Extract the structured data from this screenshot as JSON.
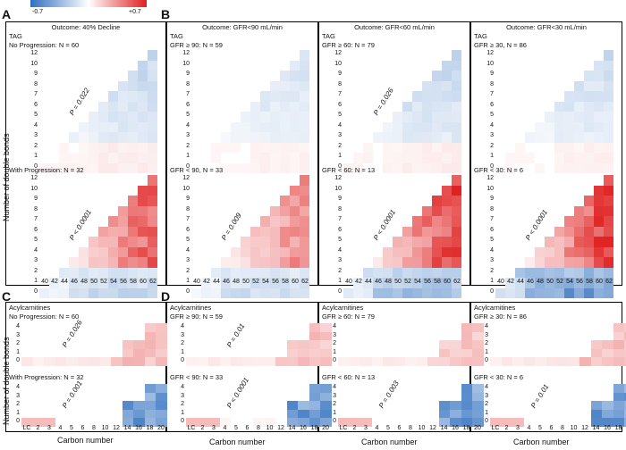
{
  "colorbar": {
    "min_label": "-0.7",
    "max_label": "+0.7",
    "low": "#2f6fbf",
    "mid": "#ffffff",
    "high": "#e02020"
  },
  "panel_letters": {
    "a": "A",
    "b": "B",
    "c": "C",
    "d": "D"
  },
  "titles": {
    "a": "Outcome: 40% Decline",
    "b1": "Outcome: GFR<90 mL/min",
    "b2": "Outcome: GFR<60 mL/min",
    "b3": "Outcome: GFR<30 mL/min"
  },
  "tag_label": "TAG",
  "acyl_label": "Acylcarnitines",
  "groups": {
    "a_top": "No Progression: N = 60",
    "a_bot": "With Progression: N = 32",
    "b1_top": "GFR ≥ 90: N = 59",
    "b1_bot": "GFR < 90, N = 33",
    "b2_top": "GFR ≥ 60: N = 79",
    "b2_bot": "GFR < 60: N = 13",
    "b3_top": "GFR ≥ 30, N = 86",
    "b3_bot": "GFR < 30: N = 6",
    "c_top": "No Progression: N = 60",
    "c_bot": "With Progression: N = 32",
    "d1_top": "GFR ≥ 90: N = 59",
    "d1_bot": "GFR < 90: N = 33",
    "d2_top": "GFR ≥ 60: N = 79",
    "d2_bot": "GFR < 60: N = 13",
    "d3_top": "GFR ≥ 30: N = 86",
    "d3_bot": "GFR < 30: N = 6"
  },
  "pvalues": {
    "a_top": "P = 0.022",
    "a_bot": "P < 0.0001",
    "b1_bot": "P = 0.009",
    "b2_top": "P = 0.026",
    "b2_bot": "P < 0.0001",
    "b3_bot": "P < 0.0001",
    "c_top": "P = 0.026",
    "c_bot": "P = 0.001",
    "d1_top": "P = 0.01",
    "d1_bot": "P < 0.0001",
    "d2_bot": "P = 0.003",
    "d3_bot": "P = 0.01"
  },
  "tag_y_ticks": [
    "12",
    "10",
    "9",
    "8",
    "7",
    "6",
    "5",
    "4",
    "3",
    "2",
    "1",
    "0"
  ],
  "tag_x_ticks": [
    "40",
    "42",
    "44",
    "46",
    "48",
    "50",
    "52",
    "54",
    "56",
    "58",
    "60",
    "62"
  ],
  "acyl_y_ticks": [
    "4",
    "3",
    "2",
    "1",
    "0"
  ],
  "acyl_x_ticks": [
    "LC",
    "2",
    "3",
    "4",
    "5",
    "6",
    "8",
    "10",
    "12",
    "14",
    "16",
    "18",
    "20"
  ],
  "axis": {
    "ylabel": "Number of double bonds",
    "xlabel": "Carbon number"
  }
}
